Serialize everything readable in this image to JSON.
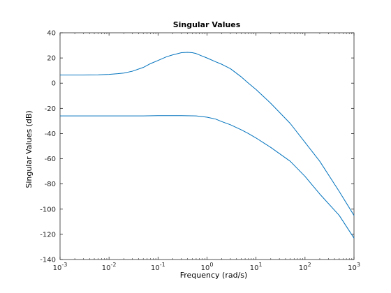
{
  "chart_data": {
    "type": "line",
    "title": "Singular Values",
    "xlabel": "Frequency (rad/s)",
    "ylabel": "Singular Values (dB)",
    "xscale": "log",
    "xlim": [
      0.001,
      1000
    ],
    "ylim": [
      -140,
      40
    ],
    "x_ticks": [
      {
        "value": 0.001,
        "base": "10",
        "exp": "-3"
      },
      {
        "value": 0.01,
        "base": "10",
        "exp": "-2"
      },
      {
        "value": 0.1,
        "base": "10",
        "exp": "-1"
      },
      {
        "value": 1,
        "base": "10",
        "exp": "0"
      },
      {
        "value": 10,
        "base": "10",
        "exp": "1"
      },
      {
        "value": 100,
        "base": "10",
        "exp": "2"
      },
      {
        "value": 1000,
        "base": "10",
        "exp": "3"
      }
    ],
    "y_ticks": [
      40,
      20,
      0,
      -20,
      -40,
      -60,
      -80,
      -100,
      -120,
      -140
    ],
    "grid": false,
    "line_color": "#0072bd",
    "series": [
      {
        "x": [
          0.001,
          0.003,
          0.006,
          0.01,
          0.015,
          0.02,
          0.03,
          0.05,
          0.07,
          0.1,
          0.15,
          0.2,
          0.3,
          0.4,
          0.5,
          0.6,
          0.8,
          1,
          1.5,
          2,
          3,
          5,
          7,
          10,
          20,
          50,
          100,
          200,
          500,
          1000
        ],
        "y": [
          6.5,
          6.5,
          6.6,
          7,
          7.5,
          8,
          9.5,
          12.5,
          15.5,
          18,
          21,
          22.5,
          24.2,
          24.5,
          24.2,
          23.5,
          21.5,
          20,
          17,
          15,
          11.5,
          5,
          0,
          -5,
          -16,
          -32,
          -47,
          -62,
          -86,
          -105
        ]
      },
      {
        "x": [
          0.001,
          0.01,
          0.05,
          0.1,
          0.3,
          0.6,
          1,
          1.5,
          2,
          3,
          5,
          7,
          10,
          20,
          50,
          100,
          200,
          500,
          1000
        ],
        "y": [
          -26,
          -26,
          -26,
          -25.8,
          -25.8,
          -26,
          -27,
          -28.5,
          -30.5,
          -33,
          -37,
          -40,
          -43.5,
          -51,
          -62,
          -74,
          -88,
          -105,
          -123
        ]
      }
    ]
  }
}
